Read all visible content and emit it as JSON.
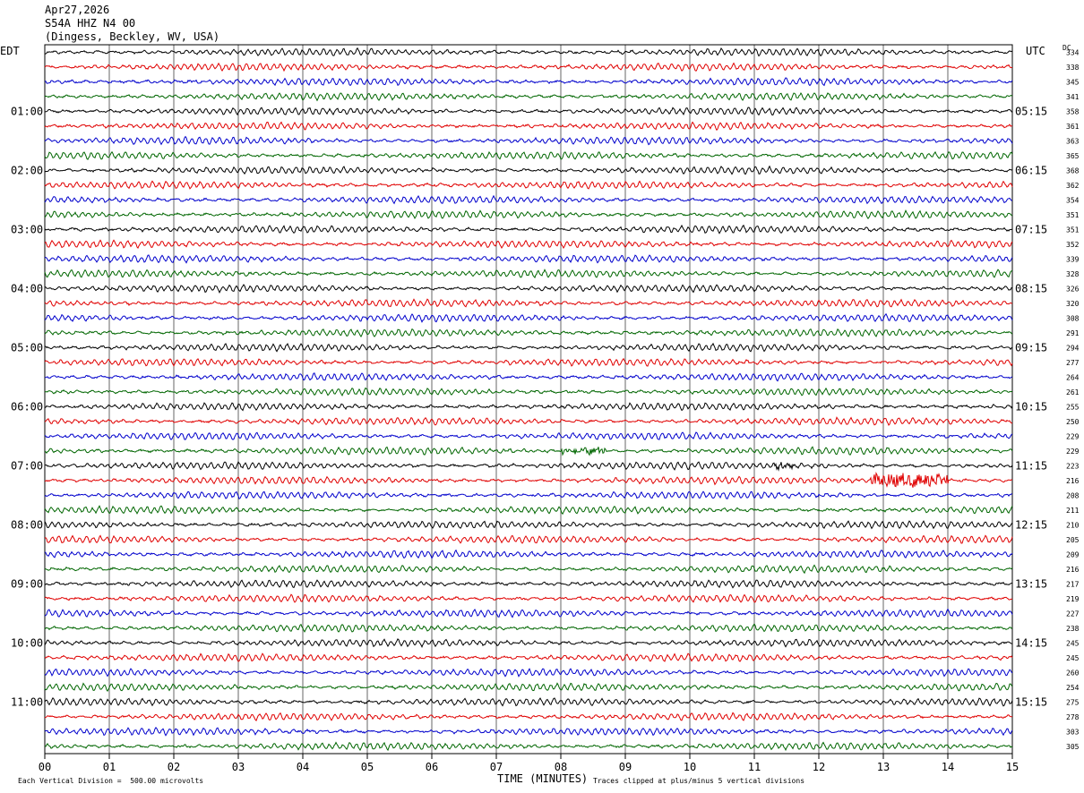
{
  "header": {
    "date": "Apr27,2026",
    "station": "S54A HHZ N4 00",
    "location": "(Dingess, Beckley, WV, USA)"
  },
  "left_label": "EDT",
  "right_label": "UTC",
  "dc_label": "DC",
  "footer": {
    "scale_note": "Each Vertical Division =  500.00 microvolts",
    "xlabel": "TIME (MINUTES)",
    "clip_note": "Traces clipped at plus/minus 5 vertical divisions"
  },
  "chart_data": {
    "type": "line",
    "title": "S54A HHZ N4 00",
    "xlabel": "TIME (MINUTES)",
    "xlim": [
      0,
      15
    ],
    "x_ticks": [
      "00",
      "01",
      "02",
      "03",
      "04",
      "05",
      "06",
      "07",
      "08",
      "09",
      "10",
      "11",
      "12",
      "13",
      "14",
      "15"
    ],
    "trace_colors": [
      "#000000",
      "#e00000",
      "#0000cc",
      "#006600"
    ],
    "left_time_labels": [
      "01:00",
      "02:00",
      "03:00",
      "04:00",
      "05:00",
      "06:00",
      "07:00",
      "08:00",
      "09:00",
      "10:00",
      "11:00"
    ],
    "right_time_labels": [
      "05:15",
      "06:15",
      "07:15",
      "08:15",
      "09:15",
      "10:15",
      "11:15",
      "12:15",
      "13:15",
      "14:15",
      "15:15"
    ],
    "dc_offsets": [
      334,
      338,
      345,
      341,
      358,
      361,
      363,
      365,
      368,
      362,
      354,
      351,
      351,
      352,
      339,
      328,
      326,
      320,
      308,
      291,
      294,
      277,
      264,
      261,
      255,
      250,
      229,
      229,
      223,
      216,
      208,
      211,
      210,
      205,
      209,
      216,
      217,
      219,
      227,
      238,
      245,
      245,
      260,
      254,
      275,
      278,
      303,
      305
    ],
    "events": [
      {
        "row": 27,
        "x_min": 8.0,
        "x_max": 8.7,
        "amplitude": "moderate"
      },
      {
        "row": 29,
        "x_min": 12.8,
        "x_max": 14.0,
        "amplitude": "large"
      },
      {
        "row": 28,
        "x_min": 11.3,
        "x_max": 11.6,
        "amplitude": "small"
      }
    ]
  }
}
